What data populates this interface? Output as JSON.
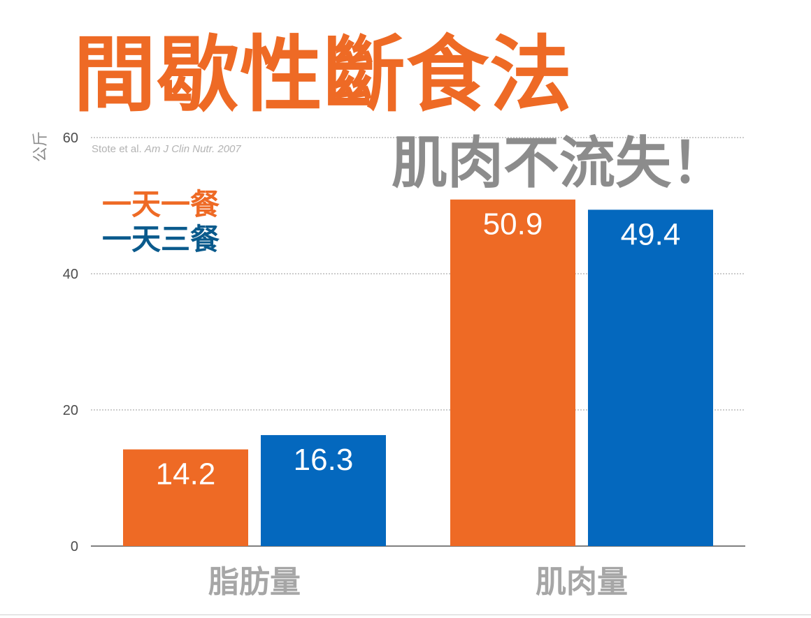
{
  "header": {
    "title": "間歇性斷食法",
    "subtitle": "肌肉不流失！",
    "citation_authors": "Stote et al.",
    "citation_journal": "Am J Clin Nutr. 2007"
  },
  "colors": {
    "series_one_meal": "#ee6a25",
    "series_three_meals": "#0468be",
    "title": "#ee6a25",
    "subtitle": "#8c8c8c",
    "axis_text": "#4d4d4d",
    "category_text": "#a6a6a6",
    "grid": "#9a9a9a",
    "legend_three_meals_text": "#0a5a8c"
  },
  "chart_data": {
    "type": "bar",
    "title": "",
    "xlabel": "",
    "ylabel": "公斤",
    "ylim": [
      0,
      60
    ],
    "yticks": [
      0,
      20,
      40,
      60
    ],
    "grid": true,
    "legend_position": "top-left",
    "categories": [
      "脂肪量",
      "肌肉量"
    ],
    "series": [
      {
        "name": "一天一餐",
        "values": [
          14.2,
          50.9
        ],
        "color": "#ee6a25"
      },
      {
        "name": "一天三餐",
        "values": [
          16.3,
          49.4
        ],
        "color": "#0468be"
      }
    ],
    "value_labels": [
      [
        "14.2",
        "50.9"
      ],
      [
        "16.3",
        "49.4"
      ]
    ]
  }
}
